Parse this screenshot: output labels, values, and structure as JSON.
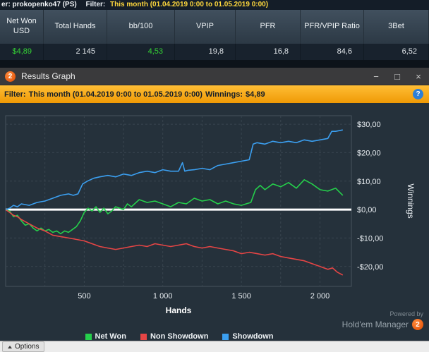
{
  "top_bar": {
    "player": "er: prokopenko47 (PS)",
    "filter_label": "Filter:",
    "filter_value": "This month (01.04.2019 0:00 to 01.05.2019 0:00)"
  },
  "stats": {
    "columns": [
      {
        "header": "Net Won USD",
        "value": "$4,89",
        "positive": true
      },
      {
        "header": "Total Hands",
        "value": "2 145",
        "positive": false
      },
      {
        "header": "bb/100",
        "value": "4,53",
        "positive": true
      },
      {
        "header": "VPIP",
        "value": "19,8",
        "positive": false
      },
      {
        "header": "PFR",
        "value": "16,8",
        "positive": false
      },
      {
        "header": "PFR/VPIP Ratio",
        "value": "84,6",
        "positive": false
      },
      {
        "header": "3Bet",
        "value": "6,52",
        "positive": false
      }
    ]
  },
  "window": {
    "title": "Results Graph",
    "logo_text": "2",
    "minimize": "−",
    "maximize": "□",
    "close": "×"
  },
  "filter_bar": {
    "filter_label": "Filter:",
    "filter_value": "This month (01.04.2019 0:00 to 01.05.2019 0:00)",
    "winnings_label": "Winnings:",
    "winnings_value": "$4,89",
    "help_glyph": "?"
  },
  "chart_data": {
    "type": "line",
    "xlabel": "Hands",
    "ylabel": "Winnings",
    "xlim": [
      0,
      2200
    ],
    "ylim": [
      -27,
      33
    ],
    "grid": true,
    "zero_line": true,
    "legend_position": "bottom",
    "x_ticks": [
      500,
      1000,
      1500,
      2000
    ],
    "x_tick_labels": [
      "500",
      "1 000",
      "1 500",
      "2 000"
    ],
    "x_grid": [
      250,
      500,
      750,
      1000,
      1250,
      1500,
      1750,
      2000
    ],
    "y_ticks": [
      30,
      20,
      10,
      0,
      -10,
      -20
    ],
    "y_tick_labels": [
      "$30,00",
      "$20,00",
      "$10,00",
      "$0,00",
      "-$10,00",
      "-$20,00"
    ],
    "series": [
      {
        "name": "Net Won",
        "color": "#25cf4b",
        "x": [
          0,
          25,
          50,
          75,
          100,
          125,
          150,
          175,
          200,
          225,
          250,
          275,
          300,
          325,
          350,
          375,
          400,
          425,
          450,
          475,
          500,
          525,
          550,
          575,
          600,
          625,
          650,
          675,
          700,
          725,
          750,
          775,
          800,
          850,
          900,
          950,
          1000,
          1050,
          1100,
          1150,
          1200,
          1250,
          1300,
          1350,
          1400,
          1450,
          1500,
          1530,
          1560,
          1590,
          1620,
          1650,
          1700,
          1750,
          1800,
          1850,
          1900,
          1950,
          2000,
          2050,
          2100,
          2145
        ],
        "y": [
          0,
          -0.5,
          -2.5,
          -2,
          -4,
          -5.5,
          -5,
          -6.5,
          -7.5,
          -6.5,
          -7.5,
          -7,
          -8,
          -7.5,
          -8.5,
          -7.5,
          -8,
          -7,
          -6,
          -4,
          -1,
          0.5,
          -0.5,
          1,
          -1,
          0.5,
          -1.5,
          -0.5,
          1,
          0.5,
          0,
          2,
          1,
          3.5,
          2.5,
          3,
          2,
          1,
          2.5,
          2,
          4,
          3,
          3.5,
          2,
          3,
          2,
          1.5,
          2,
          2.5,
          7,
          8.5,
          7,
          9,
          8,
          9.5,
          7.5,
          10.5,
          9,
          7,
          6.5,
          7.5,
          5
        ]
      },
      {
        "name": "Non Showdown",
        "color": "#e64545",
        "x": [
          0,
          25,
          50,
          75,
          100,
          150,
          200,
          250,
          300,
          350,
          400,
          450,
          500,
          550,
          600,
          650,
          700,
          750,
          800,
          850,
          900,
          950,
          1000,
          1050,
          1100,
          1150,
          1200,
          1250,
          1300,
          1350,
          1400,
          1450,
          1500,
          1550,
          1600,
          1650,
          1700,
          1750,
          1800,
          1850,
          1900,
          1950,
          2000,
          2050,
          2080,
          2110,
          2145
        ],
        "y": [
          0,
          -1,
          -2,
          -2.5,
          -3.5,
          -5,
          -6.5,
          -7.5,
          -9,
          -9.5,
          -10,
          -10.5,
          -11,
          -12,
          -13,
          -13.5,
          -14,
          -13.5,
          -13,
          -12.5,
          -13,
          -12,
          -12.5,
          -13,
          -12.5,
          -12,
          -13,
          -13.5,
          -13,
          -13.5,
          -14,
          -14.5,
          -15.5,
          -15,
          -15.5,
          -16,
          -15.5,
          -16.5,
          -17,
          -17.5,
          -18,
          -19,
          -20,
          -21,
          -20.5,
          -22,
          -23
        ]
      },
      {
        "name": "Showdown",
        "color": "#3b9ff0",
        "x": [
          0,
          25,
          50,
          75,
          100,
          150,
          200,
          250,
          300,
          350,
          400,
          430,
          460,
          490,
          520,
          560,
          600,
          650,
          700,
          750,
          800,
          850,
          900,
          950,
          1000,
          1050,
          1100,
          1125,
          1140,
          1160,
          1200,
          1250,
          1300,
          1350,
          1400,
          1450,
          1500,
          1550,
          1575,
          1600,
          1650,
          1700,
          1750,
          1800,
          1850,
          1900,
          1950,
          2000,
          2050,
          2075,
          2100,
          2145
        ],
        "y": [
          0,
          0.5,
          1.5,
          1,
          2,
          1.5,
          2.5,
          3,
          4,
          5,
          5.5,
          5,
          5.5,
          9,
          10,
          11,
          11.5,
          12,
          11.5,
          12.5,
          12,
          13,
          13.5,
          13,
          14,
          13.5,
          13.5,
          16.5,
          13.5,
          13.8,
          14,
          14.5,
          14,
          15.5,
          16,
          16.5,
          17,
          17.5,
          23,
          23.5,
          23,
          24,
          23.5,
          24,
          23.5,
          24.5,
          24,
          24.5,
          25,
          27.5,
          27.5,
          28
        ]
      }
    ]
  },
  "branding": {
    "powered_by": "Powered by",
    "brand_name": "Hold'em Manager",
    "logo_text": "2"
  },
  "status_bar": {
    "options_label": "Options"
  },
  "theme": {
    "positive_color": "#35d435",
    "accent_amber": "#f5a623",
    "filter_text_yellow": "#ffd83d",
    "graph_bg": "#25313b",
    "zero_line_color": "#ffffff"
  }
}
